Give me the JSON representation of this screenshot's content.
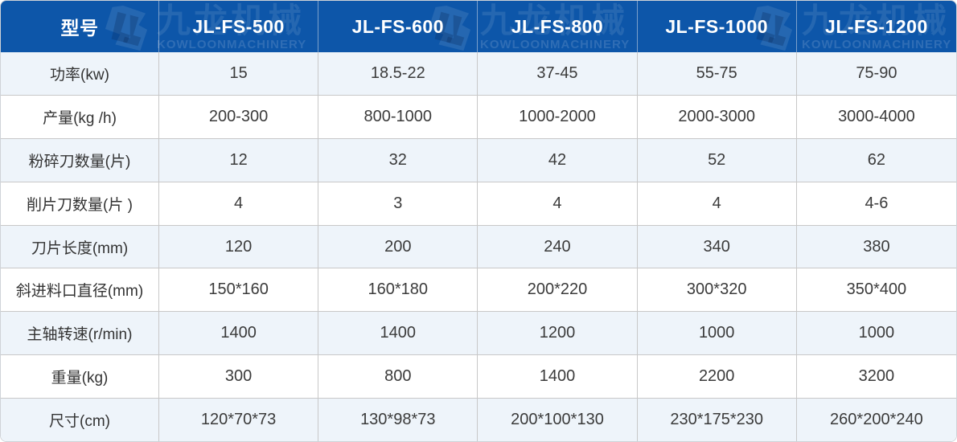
{
  "brand": {
    "logo_icon": "jl-monogram-badge",
    "name_cn": "九龙机械",
    "name_en": "KOWLOONMACHINERY"
  },
  "colors": {
    "header_bg": "#0d56a9",
    "header_text": "#ffffff",
    "row_alt_bg": "#eef4fa",
    "row_bg": "#ffffff",
    "grid_border": "#c8c8c8",
    "body_text": "#3b3b3b"
  },
  "chart_data": {
    "type": "table",
    "title": "",
    "columns": [
      "型号",
      "JL-FS-500",
      "JL-FS-600",
      "JL-FS-800",
      "JL-FS-1000",
      "JL-FS-1200"
    ],
    "rows": [
      [
        "功率(kw)",
        "15",
        "18.5-22",
        "37-45",
        "55-75",
        "75-90"
      ],
      [
        "产量(kg /h)",
        "200-300",
        "800-1000",
        "1000-2000",
        "2000-3000",
        "3000-4000"
      ],
      [
        "粉碎刀数量(片)",
        "12",
        "32",
        "42",
        "52",
        "62"
      ],
      [
        "削片刀数量(片 )",
        "4",
        "3",
        "4",
        "4",
        "4-6"
      ],
      [
        "刀片长度(mm)",
        "120",
        "200",
        "240",
        "340",
        "380"
      ],
      [
        "斜进料口直径(mm)",
        "150*160",
        "160*180",
        "200*220",
        "300*320",
        "350*400"
      ],
      [
        "主轴转速(r/min)",
        "1400",
        "1400",
        "1200",
        "1000",
        "1000"
      ],
      [
        "重量(kg)",
        "300",
        "800",
        "1400",
        "2200",
        "3200"
      ],
      [
        "尺寸(cm)",
        "120*70*73",
        "130*98*73",
        "200*100*130",
        "230*175*230",
        "260*200*240"
      ]
    ],
    "layout": {
      "first_column_is_row_label": true,
      "alt_row_shading": "odd rows tinted",
      "grid": true
    }
  }
}
